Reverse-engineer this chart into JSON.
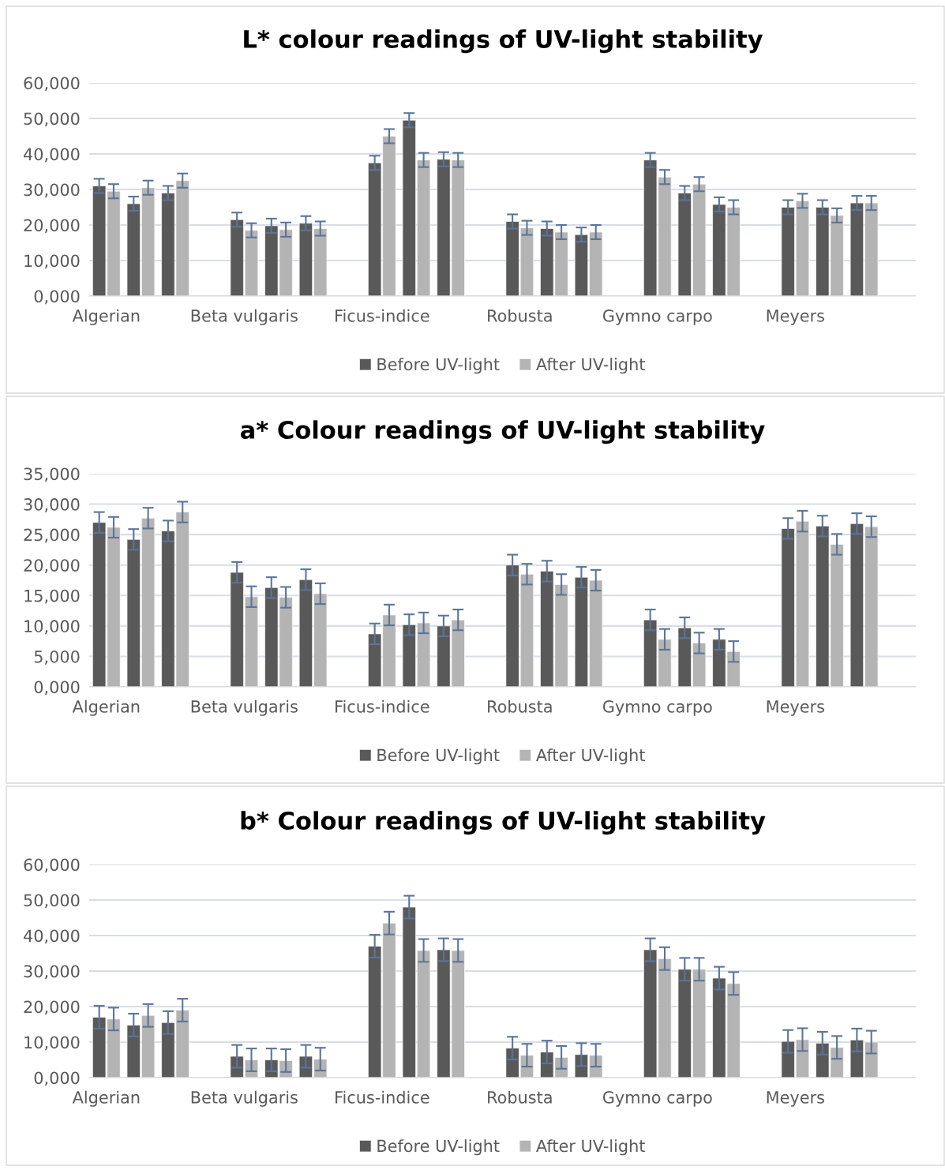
{
  "chart_data": [
    {
      "type": "bar",
      "title": "L* colour readings of UV-light stability",
      "categories": [
        "Algerian",
        null,
        null,
        null,
        "Beta vulgaris",
        null,
        null,
        null,
        "Ficus-indice",
        null,
        null,
        null,
        "Robusta",
        null,
        null,
        null,
        "Gymno carpo",
        null,
        null,
        null,
        "Meyers",
        null,
        null,
        null
      ],
      "series": [
        {
          "name": "Before UV-light",
          "color": "#595959",
          "values": [
            31,
            26,
            29,
            null,
            21.5,
            19.8,
            20.5,
            null,
            37.5,
            49.5,
            38.5,
            null,
            21,
            19,
            17.3,
            null,
            38.3,
            29,
            25.8,
            null,
            25,
            25,
            26.2,
            null
          ],
          "errors": [
            2,
            2,
            2,
            null,
            2,
            2,
            2,
            null,
            2,
            2,
            2,
            null,
            2,
            2,
            2,
            null,
            2,
            2,
            2,
            null,
            2,
            2,
            2,
            null
          ]
        },
        {
          "name": "After UV-light",
          "color": "#b4b4b4",
          "values": [
            29.5,
            30.5,
            32.5,
            null,
            18.5,
            18.7,
            19,
            null,
            45,
            38.3,
            38.3,
            null,
            19.2,
            18,
            18,
            null,
            33.5,
            31.5,
            25,
            null,
            26.8,
            22.7,
            26.2,
            null
          ],
          "errors": [
            2,
            2,
            2,
            null,
            2,
            2,
            2,
            null,
            2,
            2,
            2,
            null,
            2,
            2,
            2,
            null,
            2,
            2,
            2,
            null,
            2,
            2,
            2,
            null
          ]
        }
      ],
      "ylim": [
        0,
        60
      ],
      "yticks": [
        {
          "value": 0,
          "label": "0,000"
        },
        {
          "value": 10,
          "label": "10,000"
        },
        {
          "value": 20,
          "label": "20,000"
        },
        {
          "value": 30,
          "label": "30,000"
        },
        {
          "value": 40,
          "label": "40,000"
        },
        {
          "value": 50,
          "label": "50,000"
        },
        {
          "value": 60,
          "label": "60,000"
        }
      ],
      "grid": "y",
      "legend": "bottom"
    },
    {
      "type": "bar",
      "title": "a* Colour readings of UV-light stability",
      "categories": [
        "Algerian",
        null,
        null,
        null,
        "Beta vulgaris",
        null,
        null,
        null,
        "Ficus-indice",
        null,
        null,
        null,
        "Robusta",
        null,
        null,
        null,
        "Gymno carpo",
        null,
        null,
        null,
        "Meyers",
        null,
        null,
        null
      ],
      "series": [
        {
          "name": "Before UV-light",
          "color": "#595959",
          "values": [
            27,
            24.2,
            25.6,
            null,
            18.8,
            16.3,
            17.6,
            null,
            8.7,
            10.2,
            10,
            null,
            20,
            19,
            18,
            null,
            11,
            9.7,
            7.8,
            null,
            26,
            26.4,
            26.8,
            null
          ],
          "errors": [
            1.7,
            1.7,
            1.7,
            null,
            1.7,
            1.7,
            1.7,
            null,
            1.7,
            1.7,
            1.7,
            null,
            1.7,
            1.7,
            1.7,
            null,
            1.7,
            1.7,
            1.7,
            null,
            1.7,
            1.7,
            1.7,
            null
          ]
        },
        {
          "name": "After UV-light",
          "color": "#b4b4b4",
          "values": [
            26.2,
            27.7,
            28.7,
            null,
            14.8,
            14.7,
            15.3,
            null,
            11.8,
            10.5,
            11,
            null,
            18.5,
            16.8,
            17.5,
            null,
            7.8,
            7.2,
            5.8,
            null,
            27.2,
            23.4,
            26.3,
            null
          ],
          "errors": [
            1.7,
            1.7,
            1.7,
            null,
            1.7,
            1.7,
            1.7,
            null,
            1.7,
            1.7,
            1.7,
            null,
            1.7,
            1.7,
            1.7,
            null,
            1.7,
            1.7,
            1.7,
            null,
            1.7,
            1.7,
            1.7,
            null
          ]
        }
      ],
      "ylim": [
        0,
        35
      ],
      "yticks": [
        {
          "value": 0,
          "label": "0,000"
        },
        {
          "value": 5,
          "label": "5,000"
        },
        {
          "value": 10,
          "label": "10,000"
        },
        {
          "value": 15,
          "label": "15,000"
        },
        {
          "value": 20,
          "label": "20,000"
        },
        {
          "value": 25,
          "label": "25,000"
        },
        {
          "value": 30,
          "label": "30,000"
        },
        {
          "value": 35,
          "label": "35,000"
        }
      ],
      "grid": "y",
      "legend": "bottom"
    },
    {
      "type": "bar",
      "title": "b* Colour readings of UV-light stability",
      "categories": [
        "Algerian",
        null,
        null,
        null,
        "Beta vulgaris",
        null,
        null,
        null,
        "Ficus-indice",
        null,
        null,
        null,
        "Robusta",
        null,
        null,
        null,
        "Gymno carpo",
        null,
        null,
        null,
        "Meyers",
        null,
        null,
        null
      ],
      "series": [
        {
          "name": "Before UV-light",
          "color": "#595959",
          "values": [
            17,
            14.8,
            15.5,
            null,
            6,
            5,
            6,
            null,
            37,
            48,
            36,
            null,
            8.3,
            7.2,
            6.5,
            null,
            36,
            30.5,
            28,
            null,
            10.2,
            9.7,
            10.6,
            null
          ],
          "errors": [
            3.2,
            3.2,
            3.2,
            null,
            3.2,
            3.2,
            3.2,
            null,
            3.2,
            3.2,
            3.2,
            null,
            3.2,
            3.2,
            3.2,
            null,
            3.2,
            3.2,
            3.2,
            null,
            3.2,
            3.2,
            3.2,
            null
          ]
        },
        {
          "name": "After UV-light",
          "color": "#b4b4b4",
          "values": [
            16.5,
            17.5,
            19,
            null,
            5,
            4.8,
            5.2,
            null,
            43.5,
            35.8,
            35.8,
            null,
            6.3,
            5.7,
            6.3,
            null,
            33.5,
            30.5,
            26.5,
            null,
            10.7,
            8.5,
            10,
            null
          ],
          "errors": [
            3.2,
            3.2,
            3.2,
            null,
            3.2,
            3.2,
            3.2,
            null,
            3.2,
            3.2,
            3.2,
            null,
            3.2,
            3.2,
            3.2,
            null,
            3.2,
            3.2,
            3.2,
            null,
            3.2,
            3.2,
            3.2,
            null
          ]
        }
      ],
      "ylim": [
        0,
        60
      ],
      "yticks": [
        {
          "value": 0,
          "label": "0,000"
        },
        {
          "value": 10,
          "label": "10,000"
        },
        {
          "value": 20,
          "label": "20,000"
        },
        {
          "value": 30,
          "label": "30,000"
        },
        {
          "value": 40,
          "label": "40,000"
        },
        {
          "value": 50,
          "label": "50,000"
        },
        {
          "value": 60,
          "label": "60,000"
        }
      ],
      "grid": "y",
      "legend": "bottom"
    }
  ]
}
